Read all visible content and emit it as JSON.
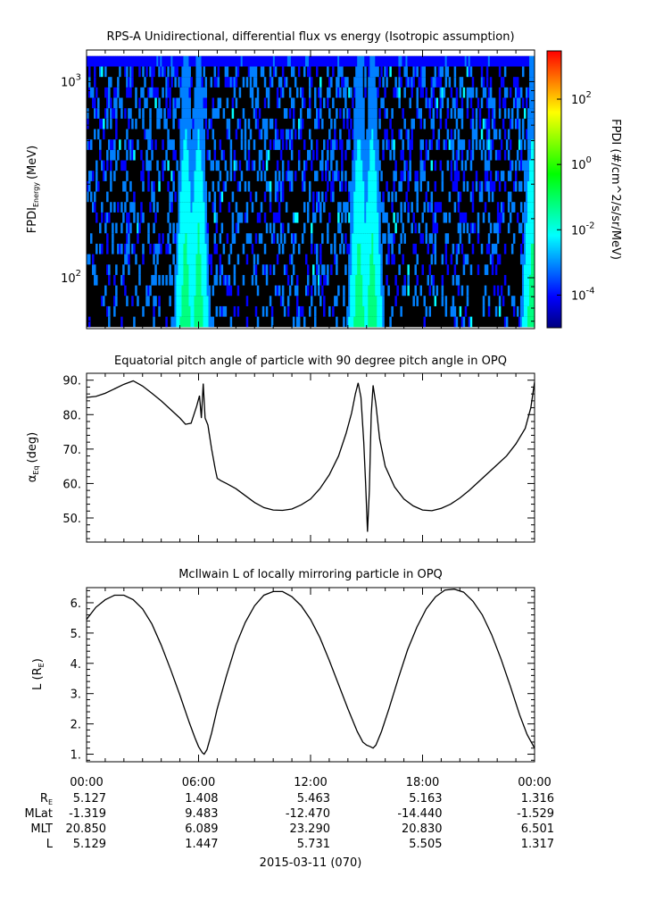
{
  "chart_data": [
    {
      "type": "heatmap",
      "title": "RPS-A Unidirectional, differential flux vs energy (Isotropic assumption)",
      "ylabel": "FPDI",
      "ylabel_sub": "Energy",
      "ylabel_unit": "(MeV)",
      "yscale": "log",
      "ylim": [
        55,
        1450
      ],
      "yticks": [
        {
          "base": "10",
          "exp": "3",
          "value": 1000
        },
        {
          "base": "10",
          "exp": "2",
          "value": 100
        }
      ],
      "energy_band_range": [
        56,
        1350
      ],
      "energy_band_count": 26,
      "background_value": "below colorbar range (black)",
      "flux_enhancements_hours": [
        5.3,
        6.0,
        14.6,
        15.3,
        23.9
      ],
      "colorbar": {
        "label": "FPDI (#/cm^2/s/sr/MeV)",
        "scale": "log",
        "range": [
          1e-05,
          3000
        ],
        "ticks": [
          {
            "base": "10",
            "exp": "2",
            "value": 100
          },
          {
            "base": "10",
            "exp": "0",
            "value": 1
          },
          {
            "base": "10",
            "exp": "-2",
            "value": 0.01
          },
          {
            "base": "10",
            "exp": "-4",
            "value": 0.0001
          }
        ],
        "colors": [
          "#00007f",
          "#0000ff",
          "#0080ff",
          "#00ffff",
          "#00ff80",
          "#00ff00",
          "#80ff00",
          "#ffff00",
          "#ff8000",
          "#ff0000"
        ]
      }
    },
    {
      "type": "line",
      "title": "Equatorial pitch angle of particle with 90 degree pitch angle in OPQ",
      "ylabel": "α",
      "ylabel_sub": "Eq",
      "ylabel_unit": "(deg)",
      "ylim": [
        43,
        92
      ],
      "yticks": [
        "50.",
        "60.",
        "70.",
        "80.",
        "90."
      ],
      "ytick_values": [
        50,
        60,
        70,
        80,
        90
      ],
      "series": [
        {
          "x": [
            0,
            0.5,
            1.0,
            1.5,
            2.0,
            2.5,
            3.0,
            3.5,
            4.0,
            4.5,
            5.0,
            5.3,
            5.6,
            5.9,
            6.05,
            6.15,
            6.25,
            6.35,
            6.5,
            6.7,
            6.9,
            7.0,
            7.2,
            7.5,
            8.0,
            8.5,
            9.0,
            9.5,
            10.0,
            10.5,
            11.0,
            11.5,
            12.0,
            12.5,
            13.0,
            13.5,
            13.9,
            14.2,
            14.4,
            14.55,
            14.7,
            14.85,
            14.95,
            15.05,
            15.15,
            15.25,
            15.35,
            15.5,
            15.7,
            16.0,
            16.5,
            17.0,
            17.5,
            18.0,
            18.5,
            19.0,
            19.5,
            20.0,
            20.5,
            21.0,
            21.5,
            22.0,
            22.5,
            23.0,
            23.5,
            23.8,
            24.0
          ],
          "values": [
            85,
            85.3,
            86.2,
            87.5,
            88.8,
            89.8,
            88.3,
            86.2,
            84.0,
            81.5,
            79.0,
            77.2,
            77.5,
            82.5,
            85.5,
            79.0,
            89.0,
            79.0,
            77.0,
            70.0,
            64.0,
            61.5,
            60.8,
            60.0,
            58.5,
            56.5,
            54.5,
            53.0,
            52.3,
            52.2,
            52.6,
            53.8,
            55.5,
            58.5,
            62.5,
            68.0,
            74.5,
            80.5,
            86.0,
            89.2,
            85.0,
            72.0,
            60.0,
            46.0,
            58.0,
            80.0,
            88.5,
            83.0,
            73.0,
            65.0,
            59.0,
            55.5,
            53.5,
            52.3,
            52.1,
            52.8,
            54.0,
            55.8,
            58.0,
            60.5,
            63.0,
            65.5,
            68.0,
            71.5,
            76.0,
            82.0,
            89.5
          ]
        }
      ]
    },
    {
      "type": "line",
      "title": "McIlwain L of locally mirroring particle in OPQ",
      "ylabel": "L (R",
      "ylabel_sub": "E",
      "ylabel_unit": ")",
      "ylim": [
        0.75,
        6.5
      ],
      "yticks": [
        "1.",
        "2.",
        "3.",
        "4.",
        "5.",
        "6."
      ],
      "ytick_values": [
        1,
        2,
        3,
        4,
        5,
        6
      ],
      "series": [
        {
          "x": [
            0,
            0.5,
            1.0,
            1.5,
            2.0,
            2.5,
            3.0,
            3.5,
            4.0,
            4.5,
            5.0,
            5.5,
            5.8,
            6.0,
            6.2,
            6.3,
            6.45,
            6.7,
            7.0,
            7.5,
            8.0,
            8.5,
            9.0,
            9.5,
            10.0,
            10.5,
            11.0,
            11.5,
            12.0,
            12.5,
            13.0,
            13.5,
            14.0,
            14.5,
            14.8,
            15.0,
            15.2,
            15.35,
            15.5,
            15.8,
            16.2,
            16.7,
            17.2,
            17.7,
            18.2,
            18.7,
            19.2,
            19.7,
            20.2,
            20.7,
            21.2,
            21.7,
            22.2,
            22.7,
            23.2,
            23.6,
            24.0
          ],
          "values": [
            5.45,
            5.85,
            6.1,
            6.25,
            6.25,
            6.1,
            5.8,
            5.3,
            4.6,
            3.8,
            2.95,
            2.05,
            1.55,
            1.25,
            1.05,
            1.0,
            1.15,
            1.7,
            2.5,
            3.6,
            4.6,
            5.35,
            5.9,
            6.25,
            6.37,
            6.37,
            6.2,
            5.9,
            5.45,
            4.85,
            4.1,
            3.3,
            2.5,
            1.75,
            1.4,
            1.3,
            1.25,
            1.2,
            1.3,
            1.75,
            2.5,
            3.5,
            4.45,
            5.2,
            5.8,
            6.2,
            6.42,
            6.45,
            6.35,
            6.05,
            5.6,
            4.95,
            4.15,
            3.25,
            2.3,
            1.65,
            1.2
          ]
        }
      ]
    }
  ],
  "x_axis": {
    "tick_labels": [
      "00:00",
      "06:00",
      "12:00",
      "18:00",
      "00:00"
    ],
    "tick_hours": [
      0,
      6,
      12,
      18,
      24
    ],
    "range_hours": [
      0,
      24
    ]
  },
  "ephemeris": {
    "rows": [
      {
        "label": "R",
        "label_sub": "E",
        "values": [
          "5.127",
          "1.408",
          "5.463",
          "5.163",
          "1.316"
        ]
      },
      {
        "label": "MLat",
        "label_sub": "",
        "values": [
          "-1.319",
          "9.483",
          "-12.470",
          "-14.440",
          "-1.529"
        ]
      },
      {
        "label": "MLT",
        "label_sub": "",
        "values": [
          "20.850",
          "6.089",
          "23.290",
          "20.830",
          "6.501"
        ]
      },
      {
        "label": "L",
        "label_sub": "",
        "values": [
          "5.129",
          "1.447",
          "5.731",
          "5.505",
          "1.317"
        ]
      }
    ]
  },
  "date_label": "2015-03-11 (070)"
}
